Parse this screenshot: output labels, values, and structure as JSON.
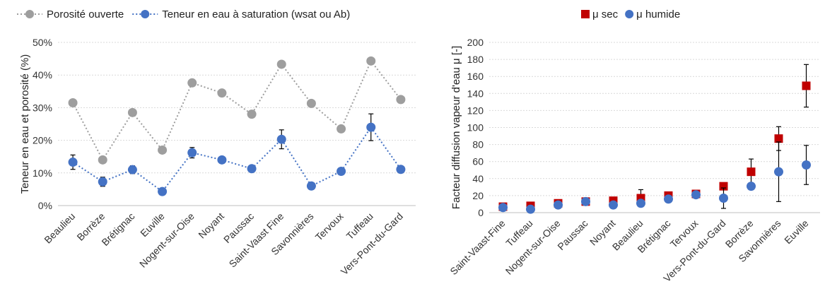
{
  "chart_data": [
    {
      "type": "line",
      "categories": [
        "Beaulieu",
        "Borrèze",
        "Brétignac",
        "Euville",
        "Nogent-sur-Oise",
        "Noyant",
        "Paussac",
        "Saint-Vaast Fine",
        "Savonnières",
        "Tervoux",
        "Tuffeau",
        "Vers-Pont-du-Gard"
      ],
      "series": [
        {
          "name": "Porosité ouverte",
          "values": [
            31.5,
            14,
            28.5,
            17,
            37.6,
            34.5,
            28,
            43.3,
            31.3,
            23.5,
            44.3,
            32.5
          ],
          "color": "#9e9e9e",
          "line_style": "dotted"
        },
        {
          "name": "Teneur en eau à saturation (wsat ou Ab)",
          "values": [
            13.3,
            7.3,
            11,
            4.3,
            16.2,
            14,
            11.3,
            20.3,
            6,
            10.5,
            24,
            11.1
          ],
          "errors": [
            2.2,
            1.4,
            1.2,
            0.4,
            1.6,
            0.7,
            0.8,
            2.9,
            0,
            0.4,
            4.1,
            0.5
          ],
          "color": "#4472c4",
          "line_style": "dotted"
        }
      ],
      "ylabel": "Teneur en eau et porosité (%)",
      "ylim": [
        0,
        50
      ],
      "yticks": [
        "0%",
        "10%",
        "20%",
        "30%",
        "40%",
        "50%"
      ],
      "grid": true,
      "legend": "top"
    },
    {
      "type": "scatter",
      "categories": [
        "Saint-Vaast-Fine",
        "Tuffeau",
        "Nogent-sur-Oise",
        "Paussac",
        "Noyant",
        "Beaulieu",
        "Brétignac",
        "Tervoux",
        "Vers-Pont-du-Gard",
        "Borrèze",
        "Savonnières",
        "Euville"
      ],
      "series": [
        {
          "name": "μ sec",
          "values": [
            7,
            8,
            11,
            13,
            14,
            17,
            20,
            22,
            31,
            48,
            87,
            149
          ],
          "errors": [
            0,
            0,
            0,
            0,
            0,
            10,
            0,
            3,
            0,
            15,
            14,
            25
          ],
          "color": "#c00000",
          "marker": "square"
        },
        {
          "name": "μ humide",
          "values": [
            6,
            4,
            9,
            13,
            9,
            11,
            16,
            21,
            17,
            31,
            48,
            56
          ],
          "errors": [
            0,
            0,
            0,
            0,
            0,
            0,
            0,
            4,
            12,
            0,
            35,
            23
          ],
          "color": "#4472c4",
          "marker": "circle"
        }
      ],
      "ylabel": "Facteur diffusion vapeur d'eau μ [-]",
      "ylim": [
        0,
        200
      ],
      "yticks": [
        "0",
        "20",
        "40",
        "60",
        "80",
        "100",
        "120",
        "140",
        "160",
        "180",
        "200"
      ],
      "grid": true,
      "legend": "top"
    }
  ]
}
